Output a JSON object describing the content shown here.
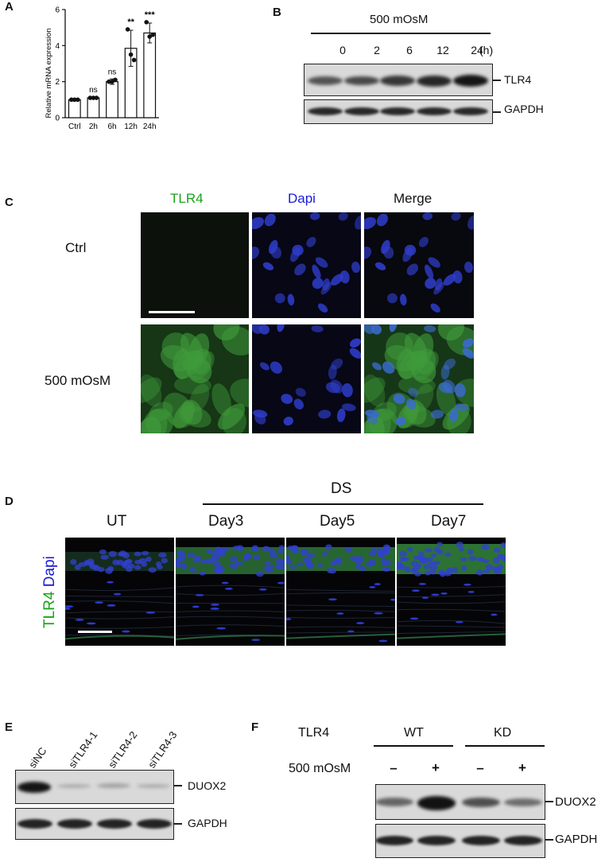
{
  "panels": {
    "A": "A",
    "B": "B",
    "C": "C",
    "D": "D",
    "E": "E",
    "F": "F"
  },
  "panel_a": {
    "sig_labels": [
      "",
      "ns",
      "ns",
      "**",
      "***"
    ]
  },
  "chart_data": {
    "type": "bar",
    "title": "",
    "xlabel": "",
    "ylabel": "Relative mRNA expression",
    "categories": [
      "Ctrl",
      "2h",
      "6h",
      "12h",
      "24h"
    ],
    "values": [
      1.0,
      1.1,
      2.0,
      3.85,
      4.7
    ],
    "errors": [
      0.05,
      0.05,
      0.15,
      1.0,
      0.55
    ],
    "points": [
      [
        1.0,
        1.0,
        1.0
      ],
      [
        1.1,
        1.1,
        1.1
      ],
      [
        2.0,
        2.0,
        2.1
      ],
      [
        4.9,
        3.5,
        3.2
      ],
      [
        5.3,
        4.5,
        4.6
      ]
    ],
    "ylim": [
      0,
      6
    ],
    "yticks": [
      0,
      2,
      4,
      6
    ],
    "grid": false
  },
  "panel_b": {
    "treatment": "500 mOsM",
    "timepoints": [
      "0",
      "2",
      "6",
      "12",
      "24"
    ],
    "unit": "(h)",
    "tlr4_label": "TLR4",
    "gapdh_label": "GAPDH",
    "tlr4_intensity": [
      0.35,
      0.45,
      0.6,
      0.75,
      0.9
    ]
  },
  "panel_c": {
    "col_headers": [
      "TLR4",
      "Dapi",
      "Merge"
    ],
    "row_labels": [
      "Ctrl",
      "500 mOsM"
    ],
    "colors": {
      "tlr4": "#1aa31a",
      "dapi": "#1b1bd6",
      "merge": "#111111"
    }
  },
  "panel_d": {
    "group_label": "DS",
    "col_headers": [
      "UT",
      "Day3",
      "Day5",
      "Day7"
    ],
    "side_label_tlr4": "TLR4",
    "side_label_dapi": "Dapi"
  },
  "panel_e": {
    "lanes": [
      "siNC",
      "siTLR4-1",
      "siTLR4-2",
      "siTLR4-3"
    ],
    "duox2_label": "DUOX2",
    "gapdh_label": "GAPDH",
    "duox2_intensity": [
      0.95,
      0.15,
      0.2,
      0.15
    ]
  },
  "panel_f": {
    "row1_label": "TLR4",
    "row2_label": "500 mOsM",
    "groups": [
      "WT",
      "KD"
    ],
    "signs": [
      "–",
      "+",
      "–",
      "+"
    ],
    "duox2_label": "DUOX2",
    "gapdh_label": "GAPDH",
    "duox2_intensity": [
      0.4,
      0.95,
      0.55,
      0.35
    ]
  }
}
